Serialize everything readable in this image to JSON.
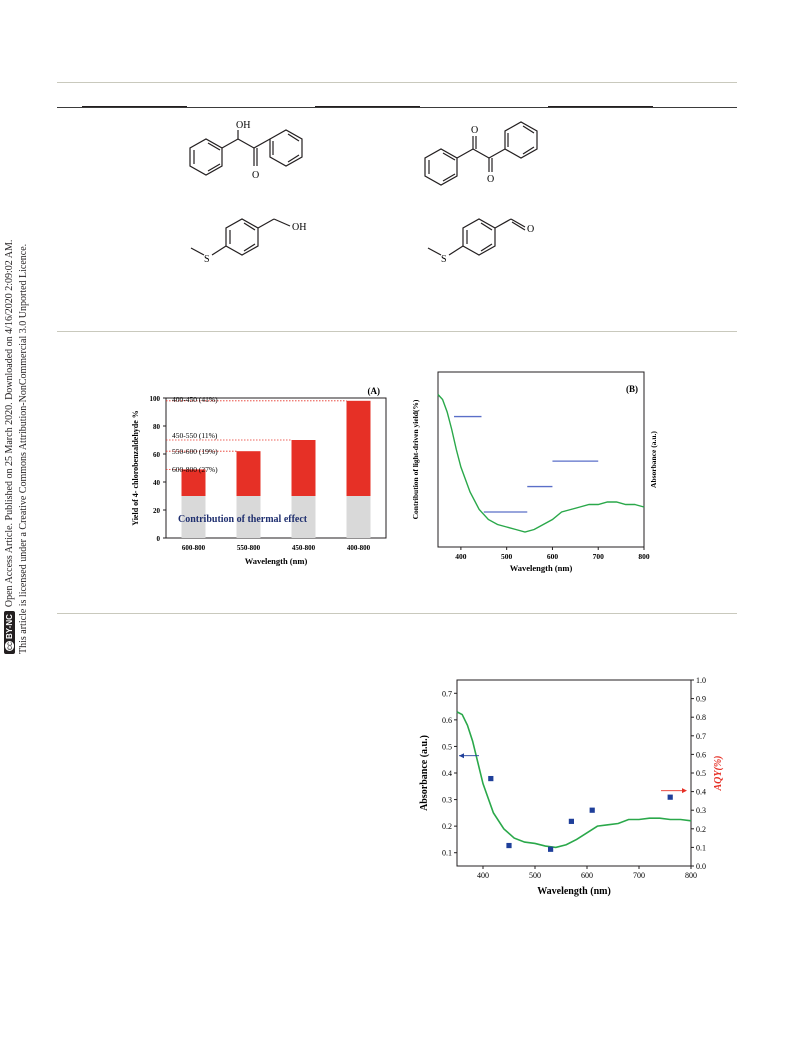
{
  "sidebar": {
    "line1": "Open Access Article. Published on 25 March 2020. Downloaded on 4/16/2020 2:09:02 AM.",
    "line2": "This article is licensed under a Creative Commons Attribution-NonCommercial 3.0 Unported Licence.",
    "badge_cc": "cc",
    "badge_by": "BY-NC"
  },
  "molecules": {
    "benzoin": {
      "oh": "OH",
      "o": "O"
    },
    "benzil": {
      "o1": "O",
      "o2": "O"
    },
    "alcohol": {
      "s": "S",
      "oh": "OH"
    },
    "aldehyde": {
      "s": "S",
      "o": "O"
    }
  },
  "colors": {
    "bar_red": "#e63026",
    "bar_gray": "#d9d9d9",
    "curve_green": "#2aa84a",
    "marker_blue": "#1f3f9a",
    "axis_red": "#e63026",
    "thermal_label": "#1f2f6f",
    "level_blue": "#5a6fc8"
  },
  "chart_data": [
    {
      "type": "bar",
      "panel": "(A)",
      "categories": [
        "600-800",
        "550-800",
        "450-800",
        "400-800"
      ],
      "series": [
        {
          "values": [
            30,
            30,
            30,
            30
          ]
        },
        {
          "values": [
            19,
            32,
            40,
            68
          ]
        }
      ],
      "totals": [
        49,
        62,
        70,
        98
      ],
      "ylabel": "Yield of 4- chlorobenzaldehyde %",
      "xlabel": "Wavelength (nm)",
      "ylim": [
        0,
        100
      ],
      "yticks": [
        "0",
        "20",
        "40",
        "60",
        "80",
        "100"
      ],
      "annotations": [
        "400-450 (41%)",
        "450-550 (11%)",
        "550-600 (19%)",
        "600-800 (27%)"
      ],
      "inner_label": "Contribution of thermal effect"
    },
    {
      "type": "line",
      "panel": "(B)",
      "xlabel": "Wavelength (nm)",
      "ylabel_left": "Contribution of light-driven yield(%)",
      "ylabel_right": "Absorbance (a.u.)",
      "xlim": [
        350,
        800
      ],
      "xticks": [
        "400",
        "500",
        "600",
        "700",
        "800"
      ],
      "absorbance_curve": {
        "x": [
          350,
          360,
          370,
          380,
          390,
          400,
          420,
          440,
          460,
          480,
          500,
          520,
          540,
          560,
          580,
          600,
          620,
          640,
          660,
          680,
          700,
          720,
          740,
          760,
          780,
          800
        ],
        "y": [
          0.66,
          0.64,
          0.59,
          0.52,
          0.44,
          0.37,
          0.27,
          0.2,
          0.16,
          0.14,
          0.13,
          0.12,
          0.11,
          0.12,
          0.14,
          0.16,
          0.19,
          0.2,
          0.21,
          0.22,
          0.22,
          0.23,
          0.23,
          0.22,
          0.22,
          0.21
        ]
      },
      "level_segments": [
        {
          "x": [
            385,
            445
          ],
          "y": 41
        },
        {
          "x": [
            450,
            545
          ],
          "y": 11
        },
        {
          "x": [
            545,
            600
          ],
          "y": 19
        },
        {
          "x": [
            600,
            700
          ],
          "y": 27
        }
      ]
    },
    {
      "type": "line",
      "xlabel": "Wavelength (nm)",
      "ylabel_left": "Absorbance (a.u.)",
      "ylabel_right": "AQY(%)",
      "xlim": [
        350,
        800
      ],
      "ylim_left": [
        0.05,
        0.75
      ],
      "ylim_right": [
        0.0,
        1.0
      ],
      "xticks": [
        "400",
        "500",
        "600",
        "700",
        "800"
      ],
      "yticks_left": [
        "0.1",
        "0.2",
        "0.3",
        "0.4",
        "0.5",
        "0.6",
        "0.7"
      ],
      "yticks_right": [
        "0.0",
        "0.1",
        "0.2",
        "0.3",
        "0.4",
        "0.5",
        "0.6",
        "0.7",
        "0.8",
        "0.9",
        "1.0"
      ],
      "absorbance_curve": {
        "x": [
          350,
          360,
          370,
          380,
          390,
          400,
          420,
          440,
          460,
          480,
          500,
          520,
          540,
          560,
          580,
          600,
          620,
          640,
          660,
          680,
          700,
          720,
          740,
          760,
          780,
          800
        ],
        "y": [
          0.63,
          0.62,
          0.58,
          0.52,
          0.44,
          0.36,
          0.25,
          0.19,
          0.155,
          0.14,
          0.135,
          0.125,
          0.12,
          0.13,
          0.15,
          0.175,
          0.2,
          0.205,
          0.21,
          0.225,
          0.225,
          0.23,
          0.23,
          0.225,
          0.225,
          0.22
        ]
      },
      "aqy_points": {
        "x": [
          415,
          450,
          530,
          570,
          610,
          760
        ],
        "y": [
          0.47,
          0.11,
          0.09,
          0.24,
          0.3,
          0.37
        ]
      }
    }
  ]
}
